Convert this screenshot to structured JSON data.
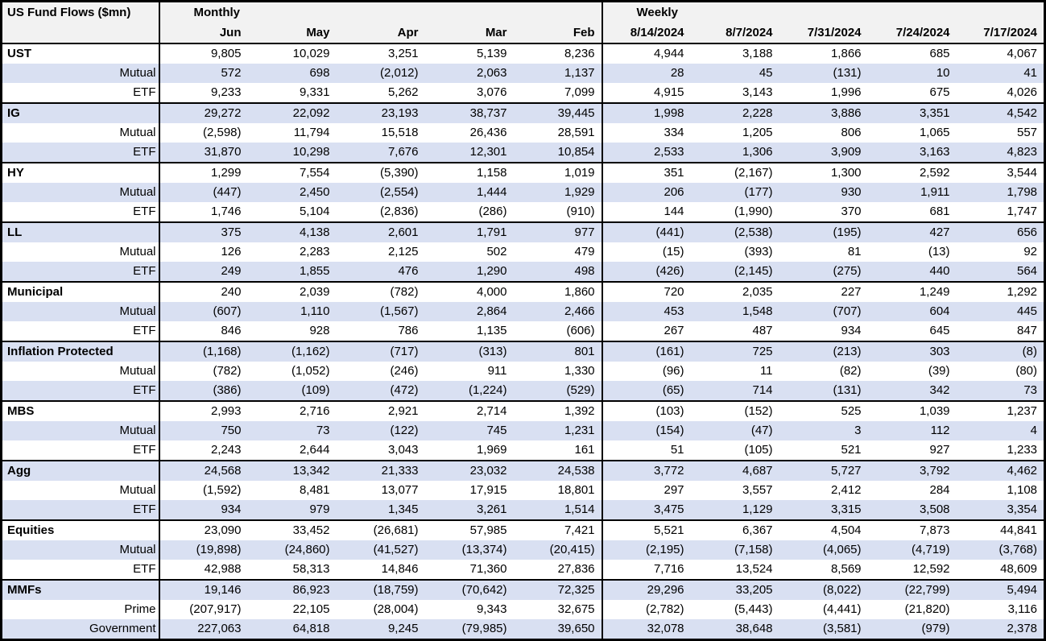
{
  "colors": {
    "stripe_row": "#d9e0f2",
    "header_bg": "#f2f2f2",
    "border": "#000000",
    "text": "#000000"
  },
  "chart_data": {
    "type": "table",
    "title": "US Fund Flows ($mn)",
    "monthly_label": "Monthly",
    "weekly_label": "Weekly",
    "monthly_columns": [
      "Jun",
      "May",
      "Apr",
      "Mar",
      "Feb"
    ],
    "weekly_columns": [
      "8/14/2024",
      "8/7/2024",
      "7/31/2024",
      "7/24/2024",
      "7/17/2024"
    ],
    "groups": [
      {
        "category": "UST",
        "rows": [
          {
            "label": "UST",
            "style": "category",
            "monthly": [
              "9,805",
              "10,029",
              "3,251",
              "5,139",
              "8,236"
            ],
            "weekly": [
              "4,944",
              "3,188",
              "1,866",
              "685",
              "4,067"
            ]
          },
          {
            "label": "Mutual",
            "style": "sub",
            "monthly": [
              "572",
              "698",
              "(2,012)",
              "2,063",
              "1,137"
            ],
            "weekly": [
              "28",
              "45",
              "(131)",
              "10",
              "41"
            ]
          },
          {
            "label": "ETF",
            "style": "sub",
            "monthly": [
              "9,233",
              "9,331",
              "5,262",
              "3,076",
              "7,099"
            ],
            "weekly": [
              "4,915",
              "3,143",
              "1,996",
              "675",
              "4,026"
            ]
          }
        ]
      },
      {
        "category": "IG",
        "rows": [
          {
            "label": "IG",
            "style": "category",
            "monthly": [
              "29,272",
              "22,092",
              "23,193",
              "38,737",
              "39,445"
            ],
            "weekly": [
              "1,998",
              "2,228",
              "3,886",
              "3,351",
              "4,542"
            ]
          },
          {
            "label": "Mutual",
            "style": "sub",
            "monthly": [
              "(2,598)",
              "11,794",
              "15,518",
              "26,436",
              "28,591"
            ],
            "weekly": [
              "334",
              "1,205",
              "806",
              "1,065",
              "557"
            ]
          },
          {
            "label": "ETF",
            "style": "sub",
            "monthly": [
              "31,870",
              "10,298",
              "7,676",
              "12,301",
              "10,854"
            ],
            "weekly": [
              "2,533",
              "1,306",
              "3,909",
              "3,163",
              "4,823"
            ]
          }
        ]
      },
      {
        "category": "HY",
        "rows": [
          {
            "label": "HY",
            "style": "category",
            "monthly": [
              "1,299",
              "7,554",
              "(5,390)",
              "1,158",
              "1,019"
            ],
            "weekly": [
              "351",
              "(2,167)",
              "1,300",
              "2,592",
              "3,544"
            ]
          },
          {
            "label": "Mutual",
            "style": "sub",
            "monthly": [
              "(447)",
              "2,450",
              "(2,554)",
              "1,444",
              "1,929"
            ],
            "weekly": [
              "206",
              "(177)",
              "930",
              "1,911",
              "1,798"
            ]
          },
          {
            "label": "ETF",
            "style": "sub",
            "monthly": [
              "1,746",
              "5,104",
              "(2,836)",
              "(286)",
              "(910)"
            ],
            "weekly": [
              "144",
              "(1,990)",
              "370",
              "681",
              "1,747"
            ]
          }
        ]
      },
      {
        "category": "LL",
        "rows": [
          {
            "label": "LL",
            "style": "category",
            "monthly": [
              "375",
              "4,138",
              "2,601",
              "1,791",
              "977"
            ],
            "weekly": [
              "(441)",
              "(2,538)",
              "(195)",
              "427",
              "656"
            ]
          },
          {
            "label": "Mutual",
            "style": "sub",
            "monthly": [
              "126",
              "2,283",
              "2,125",
              "502",
              "479"
            ],
            "weekly": [
              "(15)",
              "(393)",
              "81",
              "(13)",
              "92"
            ]
          },
          {
            "label": "ETF",
            "style": "sub",
            "monthly": [
              "249",
              "1,855",
              "476",
              "1,290",
              "498"
            ],
            "weekly": [
              "(426)",
              "(2,145)",
              "(275)",
              "440",
              "564"
            ]
          }
        ]
      },
      {
        "category": "Municipal",
        "rows": [
          {
            "label": "Municipal",
            "style": "category",
            "monthly": [
              "240",
              "2,039",
              "(782)",
              "4,000",
              "1,860"
            ],
            "weekly": [
              "720",
              "2,035",
              "227",
              "1,249",
              "1,292"
            ]
          },
          {
            "label": "Mutual",
            "style": "sub",
            "monthly": [
              "(607)",
              "1,110",
              "(1,567)",
              "2,864",
              "2,466"
            ],
            "weekly": [
              "453",
              "1,548",
              "(707)",
              "604",
              "445"
            ]
          },
          {
            "label": "ETF",
            "style": "sub",
            "monthly": [
              "846",
              "928",
              "786",
              "1,135",
              "(606)"
            ],
            "weekly": [
              "267",
              "487",
              "934",
              "645",
              "847"
            ]
          }
        ]
      },
      {
        "category": "Inflation Protected",
        "rows": [
          {
            "label": "Inflation Protected",
            "style": "category",
            "monthly": [
              "(1,168)",
              "(1,162)",
              "(717)",
              "(313)",
              "801"
            ],
            "weekly": [
              "(161)",
              "725",
              "(213)",
              "303",
              "(8)"
            ]
          },
          {
            "label": "Mutual",
            "style": "sub",
            "monthly": [
              "(782)",
              "(1,052)",
              "(246)",
              "911",
              "1,330"
            ],
            "weekly": [
              "(96)",
              "11",
              "(82)",
              "(39)",
              "(80)"
            ]
          },
          {
            "label": "ETF",
            "style": "sub",
            "monthly": [
              "(386)",
              "(109)",
              "(472)",
              "(1,224)",
              "(529)"
            ],
            "weekly": [
              "(65)",
              "714",
              "(131)",
              "342",
              "73"
            ]
          }
        ]
      },
      {
        "category": "MBS",
        "rows": [
          {
            "label": "MBS",
            "style": "category",
            "monthly": [
              "2,993",
              "2,716",
              "2,921",
              "2,714",
              "1,392"
            ],
            "weekly": [
              "(103)",
              "(152)",
              "525",
              "1,039",
              "1,237"
            ]
          },
          {
            "label": "Mutual",
            "style": "sub",
            "monthly": [
              "750",
              "73",
              "(122)",
              "745",
              "1,231"
            ],
            "weekly": [
              "(154)",
              "(47)",
              "3",
              "112",
              "4"
            ]
          },
          {
            "label": "ETF",
            "style": "sub",
            "monthly": [
              "2,243",
              "2,644",
              "3,043",
              "1,969",
              "161"
            ],
            "weekly": [
              "51",
              "(105)",
              "521",
              "927",
              "1,233"
            ]
          }
        ]
      },
      {
        "category": "Agg",
        "rows": [
          {
            "label": "Agg",
            "style": "category",
            "monthly": [
              "24,568",
              "13,342",
              "21,333",
              "23,032",
              "24,538"
            ],
            "weekly": [
              "3,772",
              "4,687",
              "5,727",
              "3,792",
              "4,462"
            ]
          },
          {
            "label": "Mutual",
            "style": "sub",
            "monthly": [
              "(1,592)",
              "8,481",
              "13,077",
              "17,915",
              "18,801"
            ],
            "weekly": [
              "297",
              "3,557",
              "2,412",
              "284",
              "1,108"
            ]
          },
          {
            "label": "ETF",
            "style": "sub",
            "monthly": [
              "934",
              "979",
              "1,345",
              "3,261",
              "1,514"
            ],
            "weekly": [
              "3,475",
              "1,129",
              "3,315",
              "3,508",
              "3,354"
            ]
          }
        ]
      },
      {
        "category": "Equities",
        "rows": [
          {
            "label": "Equities",
            "style": "category",
            "monthly": [
              "23,090",
              "33,452",
              "(26,681)",
              "57,985",
              "7,421"
            ],
            "weekly": [
              "5,521",
              "6,367",
              "4,504",
              "7,873",
              "44,841"
            ]
          },
          {
            "label": "Mutual",
            "style": "sub",
            "monthly": [
              "(19,898)",
              "(24,860)",
              "(41,527)",
              "(13,374)",
              "(20,415)"
            ],
            "weekly": [
              "(2,195)",
              "(7,158)",
              "(4,065)",
              "(4,719)",
              "(3,768)"
            ]
          },
          {
            "label": "ETF",
            "style": "sub",
            "monthly": [
              "42,988",
              "58,313",
              "14,846",
              "71,360",
              "27,836"
            ],
            "weekly": [
              "7,716",
              "13,524",
              "8,569",
              "12,592",
              "48,609"
            ]
          }
        ]
      },
      {
        "category": "MMFs",
        "rows": [
          {
            "label": "MMFs",
            "style": "category",
            "monthly": [
              "19,146",
              "86,923",
              "(18,759)",
              "(70,642)",
              "72,325"
            ],
            "weekly": [
              "29,296",
              "33,205",
              "(8,022)",
              "(22,799)",
              "5,494"
            ]
          },
          {
            "label": "Prime",
            "style": "sub",
            "monthly": [
              "(207,917)",
              "22,105",
              "(28,004)",
              "9,343",
              "32,675"
            ],
            "weekly": [
              "(2,782)",
              "(5,443)",
              "(4,441)",
              "(21,820)",
              "3,116"
            ]
          },
          {
            "label": "Government",
            "style": "sub",
            "monthly": [
              "227,063",
              "64,818",
              "9,245",
              "(79,985)",
              "39,650"
            ],
            "weekly": [
              "32,078",
              "38,648",
              "(3,581)",
              "(979)",
              "2,378"
            ]
          }
        ]
      }
    ]
  }
}
